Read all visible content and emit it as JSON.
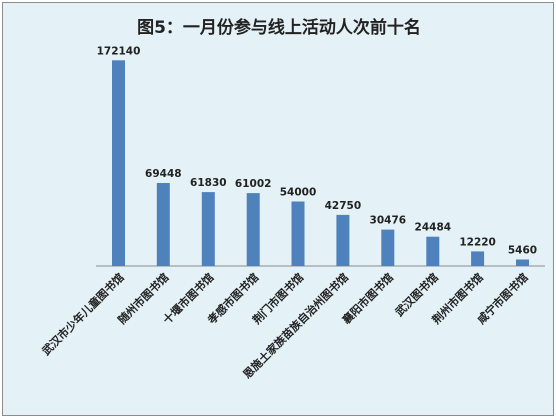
{
  "chart_data": {
    "type": "bar",
    "title": "图5：一月份参与线上活动人次前十名",
    "xlabel": "",
    "ylabel": "",
    "ylim": [
      0,
      190000
    ],
    "grid": false,
    "legend": "none",
    "bar_color": "#4f81bd",
    "categories": [
      "武汉市少年儿童图书馆",
      "随州市图书馆",
      "十堰市图书馆",
      "孝感市图书馆",
      "荆门市图书馆",
      "恩施土家族苗族自治州图书馆",
      "襄阳市图书馆",
      "武汉图书馆",
      "荆州市图书馆",
      "咸宁市图书馆"
    ],
    "values": [
      172140,
      69448,
      61830,
      61002,
      54000,
      42750,
      30476,
      24484,
      12220,
      5460
    ]
  }
}
